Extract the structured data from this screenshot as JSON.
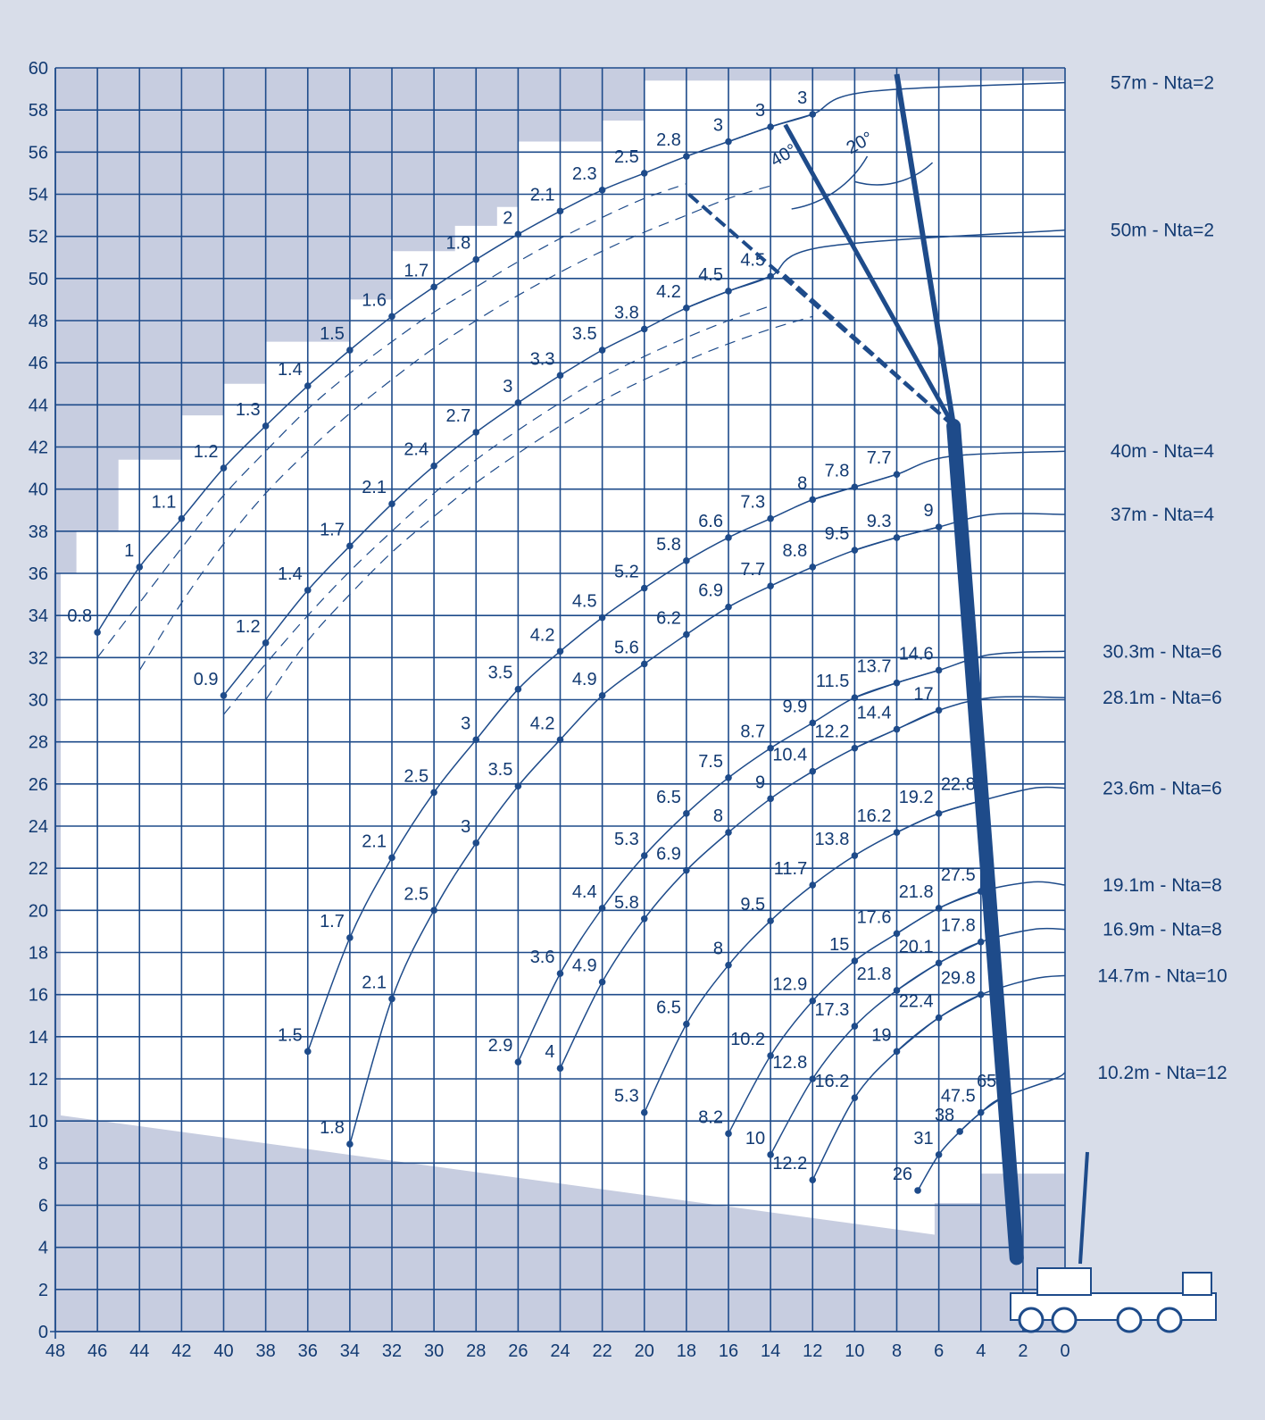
{
  "chart_data": {
    "type": "line",
    "title": "",
    "xlabel": "",
    "ylabel": "",
    "xlim": [
      48,
      0
    ],
    "ylim": [
      0,
      60
    ],
    "x_ticks": [
      48,
      46,
      44,
      42,
      40,
      38,
      36,
      34,
      32,
      30,
      28,
      26,
      24,
      22,
      20,
      18,
      16,
      14,
      12,
      10,
      8,
      6,
      4,
      2,
      0
    ],
    "y_ticks": [
      0,
      2,
      4,
      6,
      8,
      10,
      12,
      14,
      16,
      18,
      20,
      22,
      24,
      26,
      28,
      30,
      32,
      34,
      36,
      38,
      40,
      42,
      44,
      46,
      48,
      50,
      52,
      54,
      56,
      58,
      60
    ],
    "grid": true,
    "jib_angles": [
      "20°",
      "40°"
    ],
    "series": [
      {
        "name": "57m - Nta=2",
        "legend_y": 59.3,
        "style": "solid",
        "points": [
          [
            46,
            33.2
          ],
          [
            44,
            36.3
          ],
          [
            42,
            38.6
          ],
          [
            40,
            41
          ],
          [
            38,
            43
          ],
          [
            36,
            44.9
          ],
          [
            34,
            46.6
          ],
          [
            32,
            48.2
          ],
          [
            30,
            49.6
          ],
          [
            28,
            50.9
          ],
          [
            26,
            52.1
          ],
          [
            24,
            53.2
          ],
          [
            22,
            54.2
          ],
          [
            20,
            55
          ],
          [
            18,
            55.8
          ],
          [
            16,
            56.5
          ],
          [
            14,
            57.2
          ],
          [
            12,
            57.8
          ]
        ],
        "labels": [
          [
            46,
            "0.8"
          ],
          [
            44,
            "1"
          ],
          [
            42,
            "1.1"
          ],
          [
            40,
            "1.2"
          ],
          [
            38,
            "1.3"
          ],
          [
            36,
            "1.4"
          ],
          [
            34,
            "1.5"
          ],
          [
            32,
            "1.6"
          ],
          [
            30,
            "1.7"
          ],
          [
            28,
            "1.8"
          ],
          [
            26,
            "2"
          ],
          [
            24,
            "2.1"
          ],
          [
            22,
            "2.3"
          ],
          [
            20,
            "2.5"
          ],
          [
            18,
            "2.8"
          ],
          [
            16,
            "3"
          ],
          [
            14,
            "3"
          ],
          [
            12,
            "3"
          ]
        ]
      },
      {
        "name": "50m - Nta=2",
        "legend_y": 52.3,
        "style": "solid",
        "points": [
          [
            40,
            30.2
          ],
          [
            38,
            32.7
          ],
          [
            36,
            35.2
          ],
          [
            34,
            37.3
          ],
          [
            32,
            39.3
          ],
          [
            30,
            41.1
          ],
          [
            28,
            42.7
          ],
          [
            26,
            44.1
          ],
          [
            24,
            45.4
          ],
          [
            22,
            46.6
          ],
          [
            20,
            47.6
          ],
          [
            18,
            48.6
          ],
          [
            16,
            49.4
          ],
          [
            14,
            50.1
          ]
        ],
        "labels": [
          [
            40,
            "0.9"
          ],
          [
            38,
            "1.2"
          ],
          [
            36,
            "1.4"
          ],
          [
            34,
            "1.7"
          ],
          [
            32,
            "2.1"
          ],
          [
            30,
            "2.4"
          ],
          [
            28,
            "2.7"
          ],
          [
            26,
            "3"
          ],
          [
            24,
            "3.3"
          ],
          [
            22,
            "3.5"
          ],
          [
            20,
            "3.8"
          ],
          [
            18,
            "4.2"
          ],
          [
            16,
            "4.5"
          ],
          [
            14,
            "4.5"
          ]
        ]
      },
      {
        "name": "40m - Nta=4",
        "legend_y": 41.8,
        "style": "solid",
        "points": [
          [
            36,
            13.3
          ],
          [
            34,
            18.7
          ],
          [
            32,
            22.5
          ],
          [
            30,
            25.6
          ],
          [
            28,
            28.1
          ],
          [
            26,
            30.5
          ],
          [
            24,
            32.3
          ],
          [
            22,
            33.9
          ],
          [
            20,
            35.3
          ],
          [
            18,
            36.6
          ],
          [
            16,
            37.7
          ],
          [
            14,
            38.6
          ],
          [
            12,
            39.5
          ],
          [
            10,
            40.1
          ],
          [
            8,
            40.7
          ]
        ],
        "labels": [
          [
            36,
            "1.5"
          ],
          [
            34,
            "1.7"
          ],
          [
            32,
            "2.1"
          ],
          [
            30,
            "2.5"
          ],
          [
            28,
            "3"
          ],
          [
            26,
            "3.5"
          ],
          [
            24,
            "4.2"
          ],
          [
            22,
            "4.5"
          ],
          [
            20,
            "5.2"
          ],
          [
            18,
            "5.8"
          ],
          [
            16,
            "6.6"
          ],
          [
            14,
            "7.3"
          ],
          [
            12,
            "8"
          ],
          [
            10,
            "7.8"
          ],
          [
            8,
            "7.7"
          ]
        ]
      },
      {
        "name": "37m - Nta=4",
        "legend_y": 38.8,
        "style": "solid",
        "points": [
          [
            34,
            8.9
          ],
          [
            32,
            15.8
          ],
          [
            30,
            20
          ],
          [
            28,
            23.2
          ],
          [
            26,
            25.9
          ],
          [
            24,
            28.1
          ],
          [
            22,
            30.2
          ],
          [
            20,
            31.7
          ],
          [
            18,
            33.1
          ],
          [
            16,
            34.4
          ],
          [
            14,
            35.4
          ],
          [
            12,
            36.3
          ],
          [
            10,
            37.1
          ],
          [
            8,
            37.7
          ],
          [
            6,
            38.2
          ]
        ],
        "labels": [
          [
            34,
            "1.8"
          ],
          [
            32,
            "2.1"
          ],
          [
            30,
            "2.5"
          ],
          [
            28,
            "3"
          ],
          [
            26,
            "3.5"
          ],
          [
            24,
            "4.2"
          ],
          [
            22,
            "4.9"
          ],
          [
            20,
            "5.6"
          ],
          [
            18,
            "6.2"
          ],
          [
            16,
            "6.9"
          ],
          [
            14,
            "7.7"
          ],
          [
            12,
            "8.8"
          ],
          [
            10,
            "9.5"
          ],
          [
            8,
            "9.3"
          ],
          [
            6,
            "9"
          ]
        ]
      },
      {
        "name": "30.3m - Nta=6",
        "legend_y": 32.3,
        "style": "solid",
        "points": [
          [
            26,
            12.8
          ],
          [
            24,
            17
          ],
          [
            22,
            20.1
          ],
          [
            20,
            22.6
          ],
          [
            18,
            24.6
          ],
          [
            16,
            26.3
          ],
          [
            14,
            27.7
          ],
          [
            12,
            28.9
          ],
          [
            10,
            30.1
          ],
          [
            8,
            30.8
          ],
          [
            6,
            31.4
          ]
        ],
        "labels": [
          [
            26,
            "2.9"
          ],
          [
            24,
            "3.6"
          ],
          [
            22,
            "4.4"
          ],
          [
            20,
            "5.3"
          ],
          [
            18,
            "6.5"
          ],
          [
            16,
            "7.5"
          ],
          [
            14,
            "8.7"
          ],
          [
            12,
            "9.9"
          ],
          [
            10,
            "11.5"
          ],
          [
            8,
            "13.7"
          ],
          [
            6,
            "14.6"
          ]
        ]
      },
      {
        "name": "28.1m - Nta=6",
        "legend_y": 30.1,
        "style": "solid",
        "points": [
          [
            24,
            12.5
          ],
          [
            22,
            16.6
          ],
          [
            20,
            19.6
          ],
          [
            18,
            21.9
          ],
          [
            16,
            23.7
          ],
          [
            14,
            25.3
          ],
          [
            12,
            26.6
          ],
          [
            10,
            27.7
          ],
          [
            8,
            28.6
          ],
          [
            6,
            29.5
          ]
        ],
        "labels": [
          [
            24,
            "4"
          ],
          [
            22,
            "4.9"
          ],
          [
            20,
            "5.8"
          ],
          [
            18,
            "6.9"
          ],
          [
            16,
            "8"
          ],
          [
            14,
            "9"
          ],
          [
            12,
            "10.4"
          ],
          [
            10,
            "12.2"
          ],
          [
            8,
            "14.4"
          ],
          [
            6,
            "17"
          ]
        ]
      },
      {
        "name": "23.6m - Nta=6",
        "legend_y": 25.8,
        "style": "solid",
        "points": [
          [
            20,
            10.4
          ],
          [
            18,
            14.6
          ],
          [
            16,
            17.4
          ],
          [
            14,
            19.5
          ],
          [
            12,
            21.2
          ],
          [
            10,
            22.6
          ],
          [
            8,
            23.7
          ],
          [
            6,
            24.6
          ],
          [
            4,
            25.2
          ]
        ],
        "labels": [
          [
            20,
            "5.3"
          ],
          [
            18,
            "6.5"
          ],
          [
            16,
            "8"
          ],
          [
            14,
            "9.5"
          ],
          [
            12,
            "11.7"
          ],
          [
            10,
            "13.8"
          ],
          [
            8,
            "16.2"
          ],
          [
            6,
            "19.2"
          ],
          [
            4,
            "22.8"
          ]
        ]
      },
      {
        "name": "19.1m - Nta=8",
        "legend_y": 21.2,
        "style": "solid",
        "points": [
          [
            16,
            9.4
          ],
          [
            14,
            13.1
          ],
          [
            12,
            15.7
          ],
          [
            10,
            17.6
          ],
          [
            8,
            18.9
          ],
          [
            6,
            20.1
          ],
          [
            4,
            20.9
          ]
        ],
        "labels": [
          [
            16,
            "8.2"
          ],
          [
            14,
            "10.2"
          ],
          [
            12,
            "12.9"
          ],
          [
            10,
            "15"
          ],
          [
            8,
            "17.6"
          ],
          [
            6,
            "21.8"
          ],
          [
            4,
            "27.5"
          ]
        ]
      },
      {
        "name": "16.9m - Nta=8",
        "legend_y": 19.1,
        "style": "solid",
        "points": [
          [
            14,
            8.4
          ],
          [
            12,
            12
          ],
          [
            10,
            14.5
          ],
          [
            8,
            16.2
          ],
          [
            6,
            17.5
          ],
          [
            4,
            18.5
          ]
        ],
        "labels": [
          [
            14,
            "10"
          ],
          [
            12,
            "12.8"
          ],
          [
            10,
            "17.3"
          ],
          [
            8,
            "21.8"
          ],
          [
            6,
            "20.1"
          ],
          [
            4,
            "17.8"
          ]
        ]
      },
      {
        "name": "14.7m - Nta=10",
        "legend_y": 16.9,
        "style": "solid",
        "points": [
          [
            12,
            7.2
          ],
          [
            10,
            11.1
          ],
          [
            8,
            13.3
          ],
          [
            6,
            14.9
          ],
          [
            4,
            16
          ]
        ],
        "labels": [
          [
            12,
            "12.2"
          ],
          [
            10,
            "16.2"
          ],
          [
            8,
            "19"
          ],
          [
            6,
            "22.4"
          ],
          [
            4,
            "29.8"
          ]
        ]
      },
      {
        "name": "10.2m - Nta=12",
        "legend_y": 12.3,
        "style": "solid",
        "points": [
          [
            7,
            6.7
          ],
          [
            6,
            8.4
          ],
          [
            5,
            9.5
          ],
          [
            4,
            10.4
          ],
          [
            3,
            11.1
          ]
        ],
        "labels": [
          [
            7,
            "26"
          ],
          [
            6,
            "31"
          ],
          [
            5,
            "38"
          ],
          [
            4,
            "47.5"
          ],
          [
            3,
            "65"
          ]
        ]
      },
      {
        "name": "",
        "style": "dashed",
        "points": [
          [
            46,
            32
          ],
          [
            44,
            34.6
          ],
          [
            42,
            37.2
          ],
          [
            40,
            39.7
          ],
          [
            38,
            41.8
          ],
          [
            36,
            43.8
          ],
          [
            34,
            45.5
          ],
          [
            32,
            47
          ],
          [
            30,
            48.4
          ],
          [
            28,
            49.6
          ],
          [
            26,
            50.8
          ],
          [
            24,
            51.9
          ],
          [
            22,
            52.9
          ],
          [
            20,
            53.8
          ],
          [
            18,
            54.5
          ]
        ]
      },
      {
        "name": "",
        "style": "dashed",
        "points": [
          [
            44,
            31.4
          ],
          [
            42,
            34.6
          ],
          [
            40,
            37.4
          ],
          [
            38,
            39.8
          ],
          [
            36,
            41.8
          ],
          [
            34,
            43.6
          ],
          [
            32,
            45.2
          ],
          [
            30,
            46.7
          ],
          [
            28,
            48
          ],
          [
            26,
            49.2
          ],
          [
            24,
            50.3
          ],
          [
            22,
            51.3
          ],
          [
            20,
            52.2
          ],
          [
            18,
            53
          ],
          [
            16,
            53.8
          ],
          [
            14,
            54.4
          ]
        ]
      },
      {
        "name": "",
        "style": "dashed",
        "points": [
          [
            40,
            29.3
          ],
          [
            38,
            31.7
          ],
          [
            36,
            34
          ],
          [
            34,
            36.1
          ],
          [
            32,
            38
          ],
          [
            30,
            39.8
          ],
          [
            28,
            41.4
          ],
          [
            26,
            42.8
          ],
          [
            24,
            44.1
          ],
          [
            22,
            45.3
          ],
          [
            20,
            46.3
          ],
          [
            18,
            47.2
          ],
          [
            16,
            48
          ],
          [
            14,
            48.7
          ]
        ]
      },
      {
        "name": "",
        "style": "dashed",
        "points": [
          [
            38,
            30
          ],
          [
            36,
            32.8
          ],
          [
            34,
            35
          ],
          [
            32,
            37
          ],
          [
            30,
            38.7
          ],
          [
            28,
            40.3
          ],
          [
            26,
            41.7
          ],
          [
            24,
            43
          ],
          [
            22,
            44.2
          ],
          [
            20,
            45.2
          ],
          [
            18,
            46.1
          ],
          [
            16,
            46.9
          ],
          [
            14,
            47.6
          ],
          [
            12,
            48.2
          ]
        ]
      }
    ]
  },
  "colors": {
    "background": "#d8dde9",
    "plot": "#ffffff",
    "shade": "#c7cde0",
    "ink": "#123a72",
    "line": "#1e4b8a"
  }
}
